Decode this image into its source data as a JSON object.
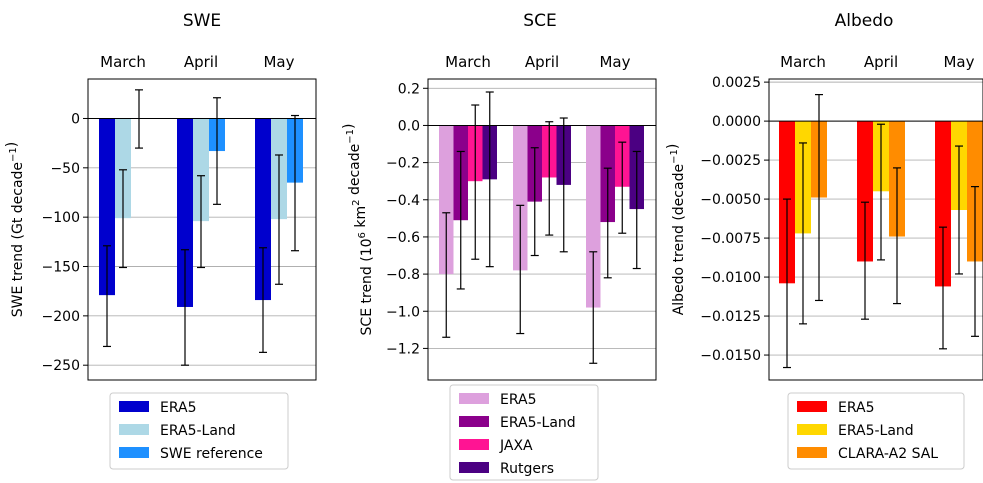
{
  "chart_data": [
    {
      "type": "bar",
      "title": "SWE",
      "categories": [
        "March",
        "April",
        "May"
      ],
      "ylabel": "SWE trend (Gt decade",
      "ylabel_sup": "−1",
      "ylabel_end": ")",
      "ylim": [
        -265,
        40
      ],
      "yticks": [
        0,
        -50,
        -100,
        -150,
        -200,
        -250
      ],
      "ytick_labels": [
        "0",
        "−50",
        "−100",
        "−150",
        "−200",
        "−250"
      ],
      "grid": true,
      "legend_position": "bottom",
      "series": [
        {
          "name": "ERA5",
          "color": "#0000cd",
          "values": [
            -179,
            -191,
            -184
          ],
          "err_low": [
            -231,
            -250,
            -237
          ],
          "err_high": [
            -129,
            -133,
            -131
          ]
        },
        {
          "name": "ERA5-Land",
          "color": "#add8e6",
          "values": [
            -101,
            -104,
            -102
          ],
          "err_low": [
            -151,
            -151,
            -168
          ],
          "err_high": [
            -52,
            -58,
            -37
          ]
        },
        {
          "name": "SWE reference",
          "color": "#1e90ff",
          "values": [
            0,
            -33,
            -65
          ],
          "err_low": [
            -30,
            -87,
            -134
          ],
          "err_high": [
            29,
            21,
            3
          ]
        }
      ]
    },
    {
      "type": "bar",
      "title": "SCE",
      "categories": [
        "March",
        "April",
        "May"
      ],
      "ylabel": "SCE trend (10",
      "ylabel_sup": "6",
      "ylabel_mid": " km",
      "ylabel_sup2": "2",
      "ylabel_end": " decade",
      "ylabel_sup3": "−1",
      "ylabel_end2": ")",
      "ylim": [
        -1.37,
        0.25
      ],
      "yticks": [
        0.2,
        0.0,
        -0.2,
        -0.4,
        -0.6,
        -0.8,
        -1.0,
        -1.2
      ],
      "ytick_labels": [
        "0.2",
        "0.0",
        "−0.2",
        "−0.4",
        "−0.6",
        "−0.8",
        "−1.0",
        "−1.2"
      ],
      "grid": true,
      "legend_position": "bottom",
      "series": [
        {
          "name": "ERA5",
          "color": "#dda0dd",
          "values": [
            -0.8,
            -0.78,
            -0.98
          ],
          "err_low": [
            -1.14,
            -1.12,
            -1.28
          ],
          "err_high": [
            -0.47,
            -0.43,
            -0.68
          ]
        },
        {
          "name": "ERA5-Land",
          "color": "#8b008b",
          "values": [
            -0.51,
            -0.41,
            -0.52
          ],
          "err_low": [
            -0.88,
            -0.7,
            -0.82
          ],
          "err_high": [
            -0.14,
            -0.12,
            -0.23
          ]
        },
        {
          "name": "JAXA",
          "color": "#ff1493",
          "values": [
            -0.3,
            -0.28,
            -0.33
          ],
          "err_low": [
            -0.72,
            -0.59,
            -0.58
          ],
          "err_high": [
            0.11,
            0.02,
            -0.09
          ]
        },
        {
          "name": "Rutgers",
          "color": "#4b0082",
          "values": [
            -0.29,
            -0.32,
            -0.45
          ],
          "err_low": [
            -0.76,
            -0.68,
            -0.77
          ],
          "err_high": [
            0.18,
            0.04,
            -0.14
          ]
        }
      ]
    },
    {
      "type": "bar",
      "title": "Albedo",
      "categories": [
        "March",
        "April",
        "May"
      ],
      "ylabel": "Albedo trend (decade",
      "ylabel_sup": "−1",
      "ylabel_end": ")",
      "ylim": [
        -0.0166,
        0.0027
      ],
      "yticks": [
        0.0025,
        0.0,
        -0.0025,
        -0.005,
        -0.0075,
        -0.01,
        -0.0125,
        -0.015
      ],
      "ytick_labels": [
        "0.0025",
        "0.0000",
        "−0.0025",
        "−0.0050",
        "−0.0075",
        "−0.0100",
        "−0.0125",
        "−0.0150"
      ],
      "grid": true,
      "legend_position": "bottom",
      "series": [
        {
          "name": "ERA5",
          "color": "#ff0000",
          "values": [
            -0.0104,
            -0.009,
            -0.0106
          ],
          "err_low": [
            -0.0158,
            -0.0127,
            -0.0146
          ],
          "err_high": [
            -0.005,
            -0.0052,
            -0.0068
          ]
        },
        {
          "name": "ERA5-Land",
          "color": "#ffd700",
          "values": [
            -0.0072,
            -0.0045,
            -0.0057
          ],
          "err_low": [
            -0.013,
            -0.0089,
            -0.0098
          ],
          "err_high": [
            -0.0014,
            -0.0002,
            -0.0016
          ]
        },
        {
          "name": "CLARA-A2 SAL",
          "color": "#ff8c00",
          "values": [
            -0.0049,
            -0.0074,
            -0.009
          ],
          "err_low": [
            -0.0115,
            -0.0117,
            -0.0138
          ],
          "err_high": [
            0.0017,
            -0.003,
            -0.0042
          ]
        }
      ]
    }
  ]
}
